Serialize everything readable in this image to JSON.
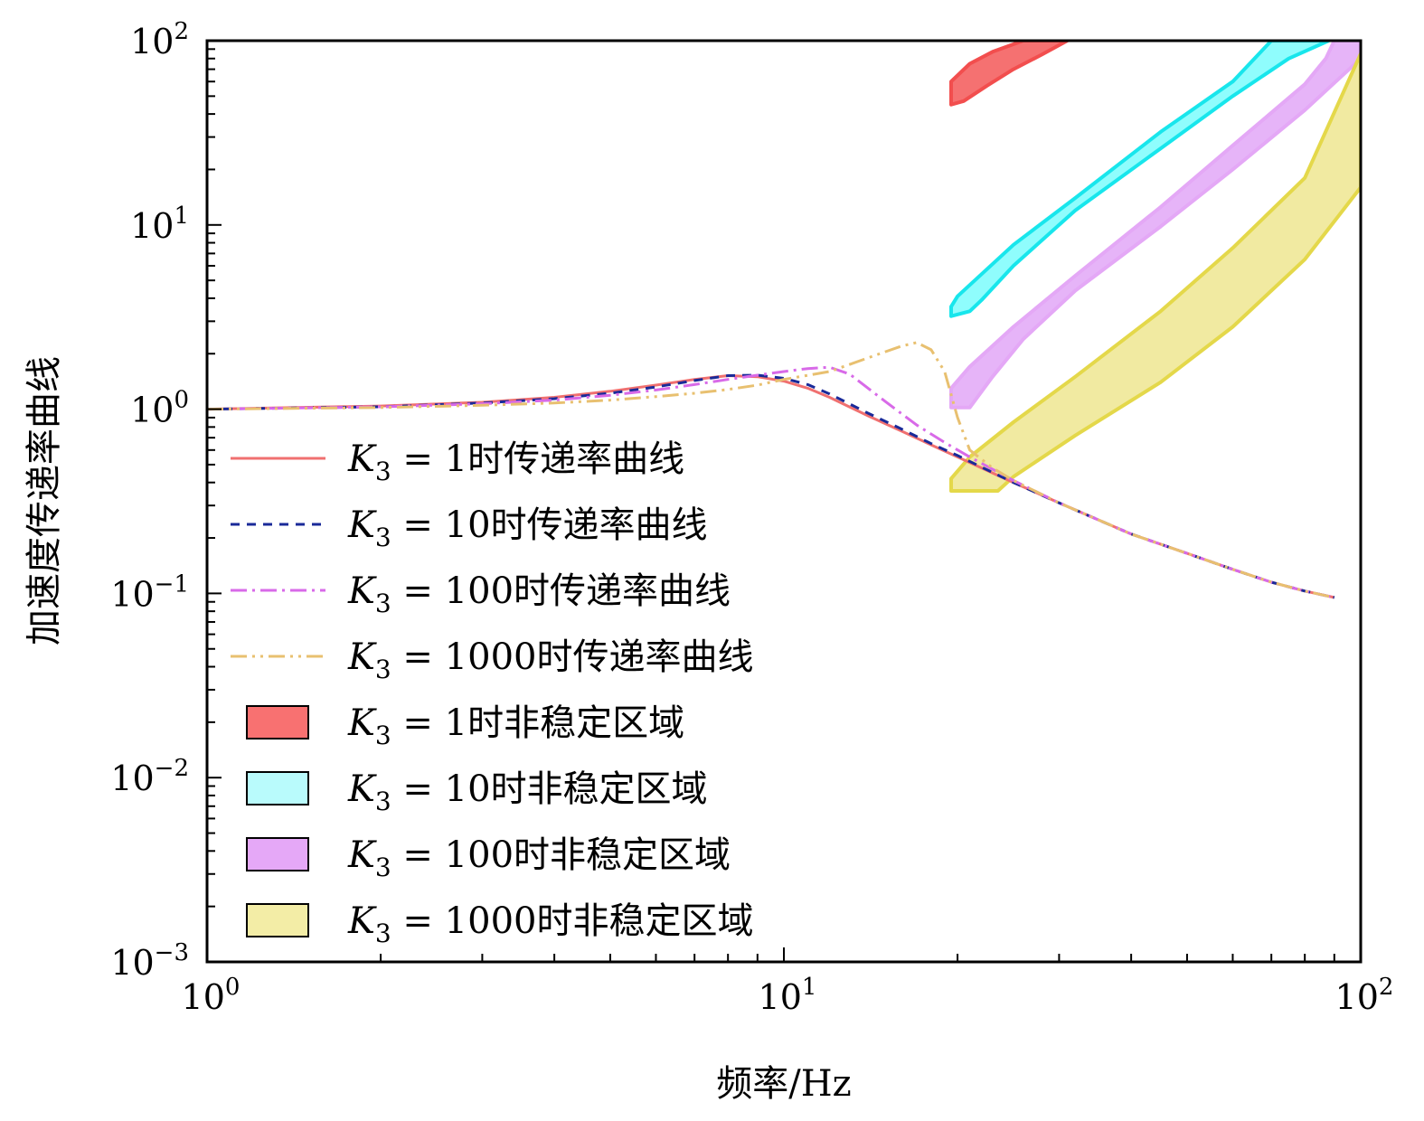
{
  "chart_data": {
    "type": "line",
    "xlabel": "频率/Hz",
    "ylabel": "加速度传递率曲线",
    "xscale": "log",
    "yscale": "log",
    "xlim": [
      1,
      100
    ],
    "ylim": [
      0.001,
      100
    ],
    "grid": false,
    "legend_position": "left",
    "x_ticks": [
      {
        "base": "10",
        "exp": "0",
        "value": 1
      },
      {
        "base": "10",
        "exp": "1",
        "value": 10
      },
      {
        "base": "10",
        "exp": "2",
        "value": 100
      }
    ],
    "y_ticks": [
      {
        "base": "10",
        "exp": "−3",
        "value": 0.001
      },
      {
        "base": "10",
        "exp": "−2",
        "value": 0.01
      },
      {
        "base": "10",
        "exp": "−1",
        "value": 0.1
      },
      {
        "base": "10",
        "exp": "0",
        "value": 1
      },
      {
        "base": "10",
        "exp": "1",
        "value": 10
      },
      {
        "base": "10",
        "exp": "2",
        "value": 100
      }
    ],
    "series": [
      {
        "name": "K₃ = 1时传递率曲线",
        "label_math": "K",
        "label_sub": "3",
        "label_rest": " = 1时传递率曲线",
        "color": "#f07070",
        "dash": "none",
        "width": 3,
        "points": [
          [
            1,
            1
          ],
          [
            2,
            1.04
          ],
          [
            3,
            1.09
          ],
          [
            4,
            1.16
          ],
          [
            5,
            1.25
          ],
          [
            6,
            1.35
          ],
          [
            7,
            1.45
          ],
          [
            8,
            1.52
          ],
          [
            9,
            1.5
          ],
          [
            10,
            1.42
          ],
          [
            11,
            1.3
          ],
          [
            12,
            1.16
          ],
          [
            14,
            0.92
          ],
          [
            16,
            0.76
          ],
          [
            18,
            0.64
          ],
          [
            20,
            0.55
          ],
          [
            25,
            0.4
          ],
          [
            30,
            0.31
          ],
          [
            40,
            0.21
          ],
          [
            50,
            0.165
          ],
          [
            60,
            0.135
          ],
          [
            70,
            0.115
          ],
          [
            80,
            0.103
          ],
          [
            90,
            0.095
          ]
        ]
      },
      {
        "name": "K₃ = 10时传递率曲线",
        "label_math": "K",
        "label_sub": "3",
        "label_rest": " = 10时传递率曲线",
        "color": "#1a2a99",
        "dash": "10,8",
        "width": 3,
        "points": [
          [
            1,
            1
          ],
          [
            2,
            1.03
          ],
          [
            3,
            1.08
          ],
          [
            4,
            1.14
          ],
          [
            5,
            1.22
          ],
          [
            6,
            1.32
          ],
          [
            7,
            1.43
          ],
          [
            8,
            1.52
          ],
          [
            9,
            1.53
          ],
          [
            10,
            1.47
          ],
          [
            11,
            1.36
          ],
          [
            12,
            1.21
          ],
          [
            14,
            0.95
          ],
          [
            16,
            0.78
          ],
          [
            18,
            0.65
          ],
          [
            20,
            0.56
          ],
          [
            25,
            0.4
          ],
          [
            30,
            0.31
          ],
          [
            40,
            0.21
          ],
          [
            50,
            0.165
          ],
          [
            60,
            0.135
          ],
          [
            70,
            0.115
          ],
          [
            80,
            0.103
          ],
          [
            90,
            0.095
          ]
        ]
      },
      {
        "name": "K₃ = 100时传递率曲线",
        "label_math": "K",
        "label_sub": "3",
        "label_rest": " = 100时传递率曲线",
        "color": "#d86ae8",
        "dash": "18,6,3,6",
        "width": 3,
        "points": [
          [
            1,
            1
          ],
          [
            2,
            1.03
          ],
          [
            3,
            1.07
          ],
          [
            4,
            1.12
          ],
          [
            5,
            1.19
          ],
          [
            6,
            1.27
          ],
          [
            7,
            1.36
          ],
          [
            8,
            1.45
          ],
          [
            9,
            1.53
          ],
          [
            10,
            1.6
          ],
          [
            11,
            1.66
          ],
          [
            12,
            1.69
          ],
          [
            13,
            1.55
          ],
          [
            15,
            1.1
          ],
          [
            17,
            0.82
          ],
          [
            19,
            0.66
          ],
          [
            21,
            0.55
          ],
          [
            25,
            0.41
          ],
          [
            30,
            0.31
          ],
          [
            40,
            0.21
          ],
          [
            50,
            0.165
          ],
          [
            60,
            0.135
          ],
          [
            70,
            0.115
          ],
          [
            80,
            0.103
          ],
          [
            90,
            0.095
          ]
        ]
      },
      {
        "name": "K₃ = 1000时传递率曲线",
        "label_math": "K",
        "label_sub": "3",
        "label_rest": " = 1000时传递率曲线",
        "color": "#e8c070",
        "dash": "18,6,3,6,3,6",
        "width": 3,
        "points": [
          [
            1,
            1
          ],
          [
            2,
            1.02
          ],
          [
            3,
            1.05
          ],
          [
            4,
            1.08
          ],
          [
            5,
            1.12
          ],
          [
            6,
            1.17
          ],
          [
            7,
            1.22
          ],
          [
            8,
            1.28
          ],
          [
            9,
            1.35
          ],
          [
            10,
            1.45
          ],
          [
            12,
            1.6
          ],
          [
            14,
            1.9
          ],
          [
            16,
            2.2
          ],
          [
            17,
            2.3
          ],
          [
            18,
            2.1
          ],
          [
            19,
            1.6
          ],
          [
            20,
            0.9
          ],
          [
            21,
            0.6
          ],
          [
            23,
            0.48
          ],
          [
            25,
            0.41
          ],
          [
            30,
            0.31
          ],
          [
            40,
            0.21
          ],
          [
            50,
            0.165
          ],
          [
            60,
            0.135
          ],
          [
            70,
            0.115
          ],
          [
            80,
            0.103
          ],
          [
            90,
            0.095
          ]
        ]
      }
    ],
    "regions": [
      {
        "name": "K₃ = 1时非稳定区域",
        "label_math": "K",
        "label_sub": "3",
        "label_rest": " = 1时非稳定区域",
        "fill": "#f24e4e",
        "fill_opacity": 0.8,
        "stroke": "#f24e4e",
        "legend_fill": "#f87171",
        "polygon": [
          [
            19.5,
            45
          ],
          [
            19.5,
            60
          ],
          [
            21,
            75
          ],
          [
            23,
            87
          ],
          [
            26,
            100
          ],
          [
            31,
            100
          ],
          [
            28,
            84
          ],
          [
            25,
            70
          ],
          [
            22.5,
            57
          ],
          [
            20.5,
            47
          ]
        ]
      },
      {
        "name": "K₃ = 10时非稳定区域",
        "label_math": "K",
        "label_sub": "3",
        "label_rest": " = 10时非稳定区域",
        "fill": "#5ffcfc",
        "fill_opacity": 0.7,
        "stroke": "#18e6ec",
        "legend_fill": "#b9fbfc",
        "polygon": [
          [
            19.5,
            3.2
          ],
          [
            19.5,
            3.6
          ],
          [
            20,
            4.1
          ],
          [
            25,
            7.8
          ],
          [
            32,
            14
          ],
          [
            45,
            32
          ],
          [
            60,
            60
          ],
          [
            70,
            100
          ],
          [
            88,
            100
          ],
          [
            75,
            80
          ],
          [
            60,
            50
          ],
          [
            45,
            26
          ],
          [
            32,
            12
          ],
          [
            25,
            6
          ],
          [
            22,
            3.9
          ],
          [
            21,
            3.4
          ]
        ]
      },
      {
        "name": "K₃ = 100时非稳定区域",
        "label_math": "K",
        "label_sub": "3",
        "label_rest": " = 100时非稳定区域",
        "fill": "#d98cf5",
        "fill_opacity": 0.65,
        "stroke": "#e4a8f6",
        "legend_fill": "#e5a8f7",
        "polygon": [
          [
            19.5,
            1.02
          ],
          [
            19.5,
            1.3
          ],
          [
            21,
            1.7
          ],
          [
            25,
            2.8
          ],
          [
            32,
            5.3
          ],
          [
            45,
            12.5
          ],
          [
            60,
            27
          ],
          [
            80,
            58
          ],
          [
            87,
            80
          ],
          [
            90,
            100
          ],
          [
            100,
            100
          ],
          [
            100,
            80
          ],
          [
            80,
            42
          ],
          [
            60,
            20
          ],
          [
            45,
            9.8
          ],
          [
            32,
            4.4
          ],
          [
            26,
            2.4
          ],
          [
            23,
            1.5
          ],
          [
            21,
            1.02
          ]
        ]
      },
      {
        "name": "K₃ = 1000时非稳定区域",
        "label_math": "K",
        "label_sub": "3",
        "label_rest": " = 1000时非稳定区域",
        "fill": "#ede58a",
        "fill_opacity": 0.8,
        "stroke": "#e4d84a",
        "legend_fill": "#f3eda6",
        "polygon": [
          [
            19.5,
            0.36
          ],
          [
            19.5,
            0.42
          ],
          [
            21,
            0.55
          ],
          [
            25,
            0.85
          ],
          [
            32,
            1.5
          ],
          [
            45,
            3.4
          ],
          [
            60,
            7.5
          ],
          [
            80,
            18
          ],
          [
            100,
            85
          ],
          [
            100,
            16
          ],
          [
            80,
            6.5
          ],
          [
            60,
            2.8
          ],
          [
            45,
            1.4
          ],
          [
            32,
            0.72
          ],
          [
            25,
            0.43
          ],
          [
            23.5,
            0.36
          ]
        ]
      }
    ]
  }
}
